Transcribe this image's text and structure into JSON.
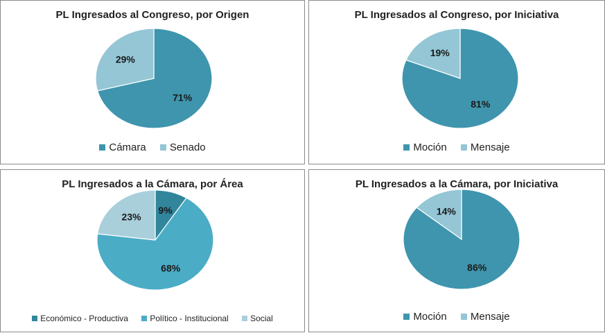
{
  "chart_data": [
    {
      "type": "pie",
      "title": "PL Ingresados al Congreso, por Origen",
      "categories": [
        "Cámara",
        "Senado"
      ],
      "values": [
        71,
        29
      ],
      "labels": [
        "71%",
        "29%"
      ],
      "colors": [
        "#3f95ad",
        "#94c6d6"
      ],
      "legend_position": "bottom"
    },
    {
      "type": "pie",
      "title": "PL Ingresados al Congreso, por Iniciativa",
      "categories": [
        "Moción",
        "Mensaje"
      ],
      "values": [
        81,
        19
      ],
      "labels": [
        "81%",
        "19%"
      ],
      "colors": [
        "#3f95ad",
        "#94c6d6"
      ],
      "legend_position": "bottom"
    },
    {
      "type": "pie",
      "title": "PL Ingresados a la Cámara, por Área",
      "categories": [
        "Económico - Productiva",
        "Político - Institucional",
        "Social"
      ],
      "values": [
        9,
        68,
        23
      ],
      "labels": [
        "9%",
        "68%",
        "23%"
      ],
      "colors": [
        "#31869b",
        "#4bacc6",
        "#a9cfdb"
      ],
      "legend_position": "bottom"
    },
    {
      "type": "pie",
      "title": "PL Ingresados a la Cámara, por Iniciativa",
      "categories": [
        "Moción",
        "Mensaje"
      ],
      "values": [
        86,
        14
      ],
      "labels": [
        "86%",
        "14%"
      ],
      "colors": [
        "#3f95ad",
        "#94c6d6"
      ],
      "legend_position": "bottom"
    }
  ]
}
